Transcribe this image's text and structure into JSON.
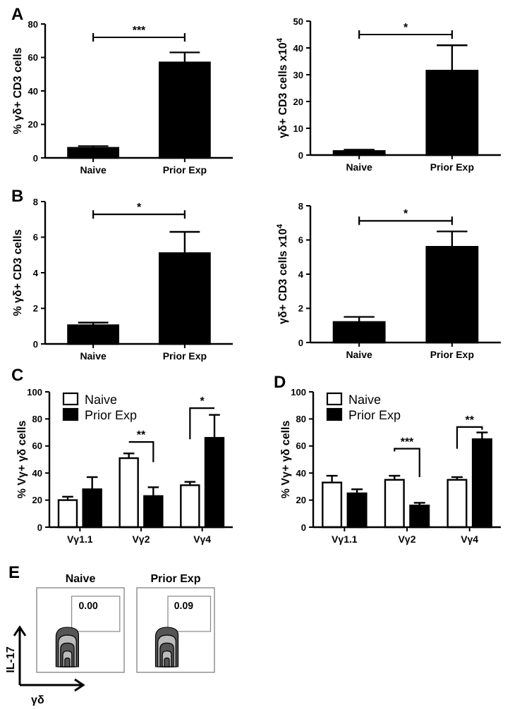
{
  "chart_data": [
    {
      "type": "bar",
      "ylabel": "% γδ+ CD3 cells",
      "categories": [
        "Naive",
        "Prior Exp"
      ],
      "values": [
        6,
        57
      ],
      "errors": [
        1,
        6
      ],
      "color": "#000000",
      "ylim": [
        0,
        80
      ],
      "yticks": [
        0,
        20,
        40,
        60,
        80
      ],
      "annotations": [
        "A",
        "***"
      ]
    },
    {
      "type": "bar",
      "ylabel": "γδ+ CD3 cells x10$^{4}$",
      "categories": [
        "Naive",
        "Prior Exp"
      ],
      "values": [
        1.5,
        31.5
      ],
      "errors": [
        0.5,
        9.5
      ],
      "color": "#000000",
      "ylim": [
        0,
        50
      ],
      "yticks": [
        0,
        10,
        20,
        30,
        40,
        50
      ],
      "annotations": [
        "*"
      ]
    },
    {
      "type": "bar",
      "ylabel": "% γδ+ CD3 cells",
      "categories": [
        "Naive",
        "Prior Exp"
      ],
      "values": [
        1.05,
        5.1
      ],
      "errors": [
        0.15,
        1.2
      ],
      "color": "#000000",
      "ylim": [
        0,
        8
      ],
      "yticks": [
        0,
        2,
        4,
        6,
        8
      ],
      "annotations": [
        "B",
        "*"
      ]
    },
    {
      "type": "bar",
      "ylabel": "γδ+ CD3 cells x10$^{4}$",
      "categories": [
        "Naive",
        "Prior Exp"
      ],
      "values": [
        1.2,
        5.6
      ],
      "errors": [
        0.3,
        0.9
      ],
      "color": "#000000",
      "ylim": [
        0,
        8
      ],
      "yticks": [
        0,
        2,
        4,
        6,
        8
      ],
      "annotations": [
        "*"
      ]
    },
    {
      "type": "bar",
      "ylabel": "% Vγ+ γδ cells",
      "categories": [
        "Vγ1.1",
        "Vγ2",
        "Vγ4"
      ],
      "series": [
        {
          "name": "Naive",
          "color": "#ffffff",
          "values": [
            20,
            51,
            31
          ],
          "errors": [
            2.5,
            3.5,
            2.5
          ]
        },
        {
          "name": "Prior Exp",
          "color": "#000000",
          "values": [
            28,
            23,
            66
          ],
          "errors": [
            9,
            6.5,
            17
          ]
        }
      ],
      "ylim": [
        0,
        100
      ],
      "yticks": [
        0,
        20,
        40,
        60,
        80,
        100
      ],
      "legend": "top left",
      "annotations": [
        "C",
        "**",
        "*"
      ]
    },
    {
      "type": "bar",
      "ylabel": "% Vγ+ γδ cells",
      "categories": [
        "Vγ1.1",
        "Vγ2",
        "Vγ4"
      ],
      "series": [
        {
          "name": "Naive",
          "color": "#ffffff",
          "values": [
            33,
            35,
            35
          ],
          "errors": [
            5,
            3,
            2
          ]
        },
        {
          "name": "Prior Exp",
          "color": "#000000",
          "values": [
            25,
            16,
            65
          ],
          "errors": [
            3,
            2,
            5
          ]
        }
      ],
      "ylim": [
        0,
        100
      ],
      "yticks": [
        0,
        20,
        40,
        60,
        80,
        100
      ],
      "legend": "top left",
      "annotations": [
        "D",
        "***",
        "**"
      ]
    },
    {
      "type": "other",
      "categories": [
        "Naive",
        "Prior Exp"
      ],
      "xlabel": "γδ",
      "ylabel": "IL-17",
      "annotations": [
        "E",
        "0.00",
        "0.09"
      ]
    }
  ]
}
